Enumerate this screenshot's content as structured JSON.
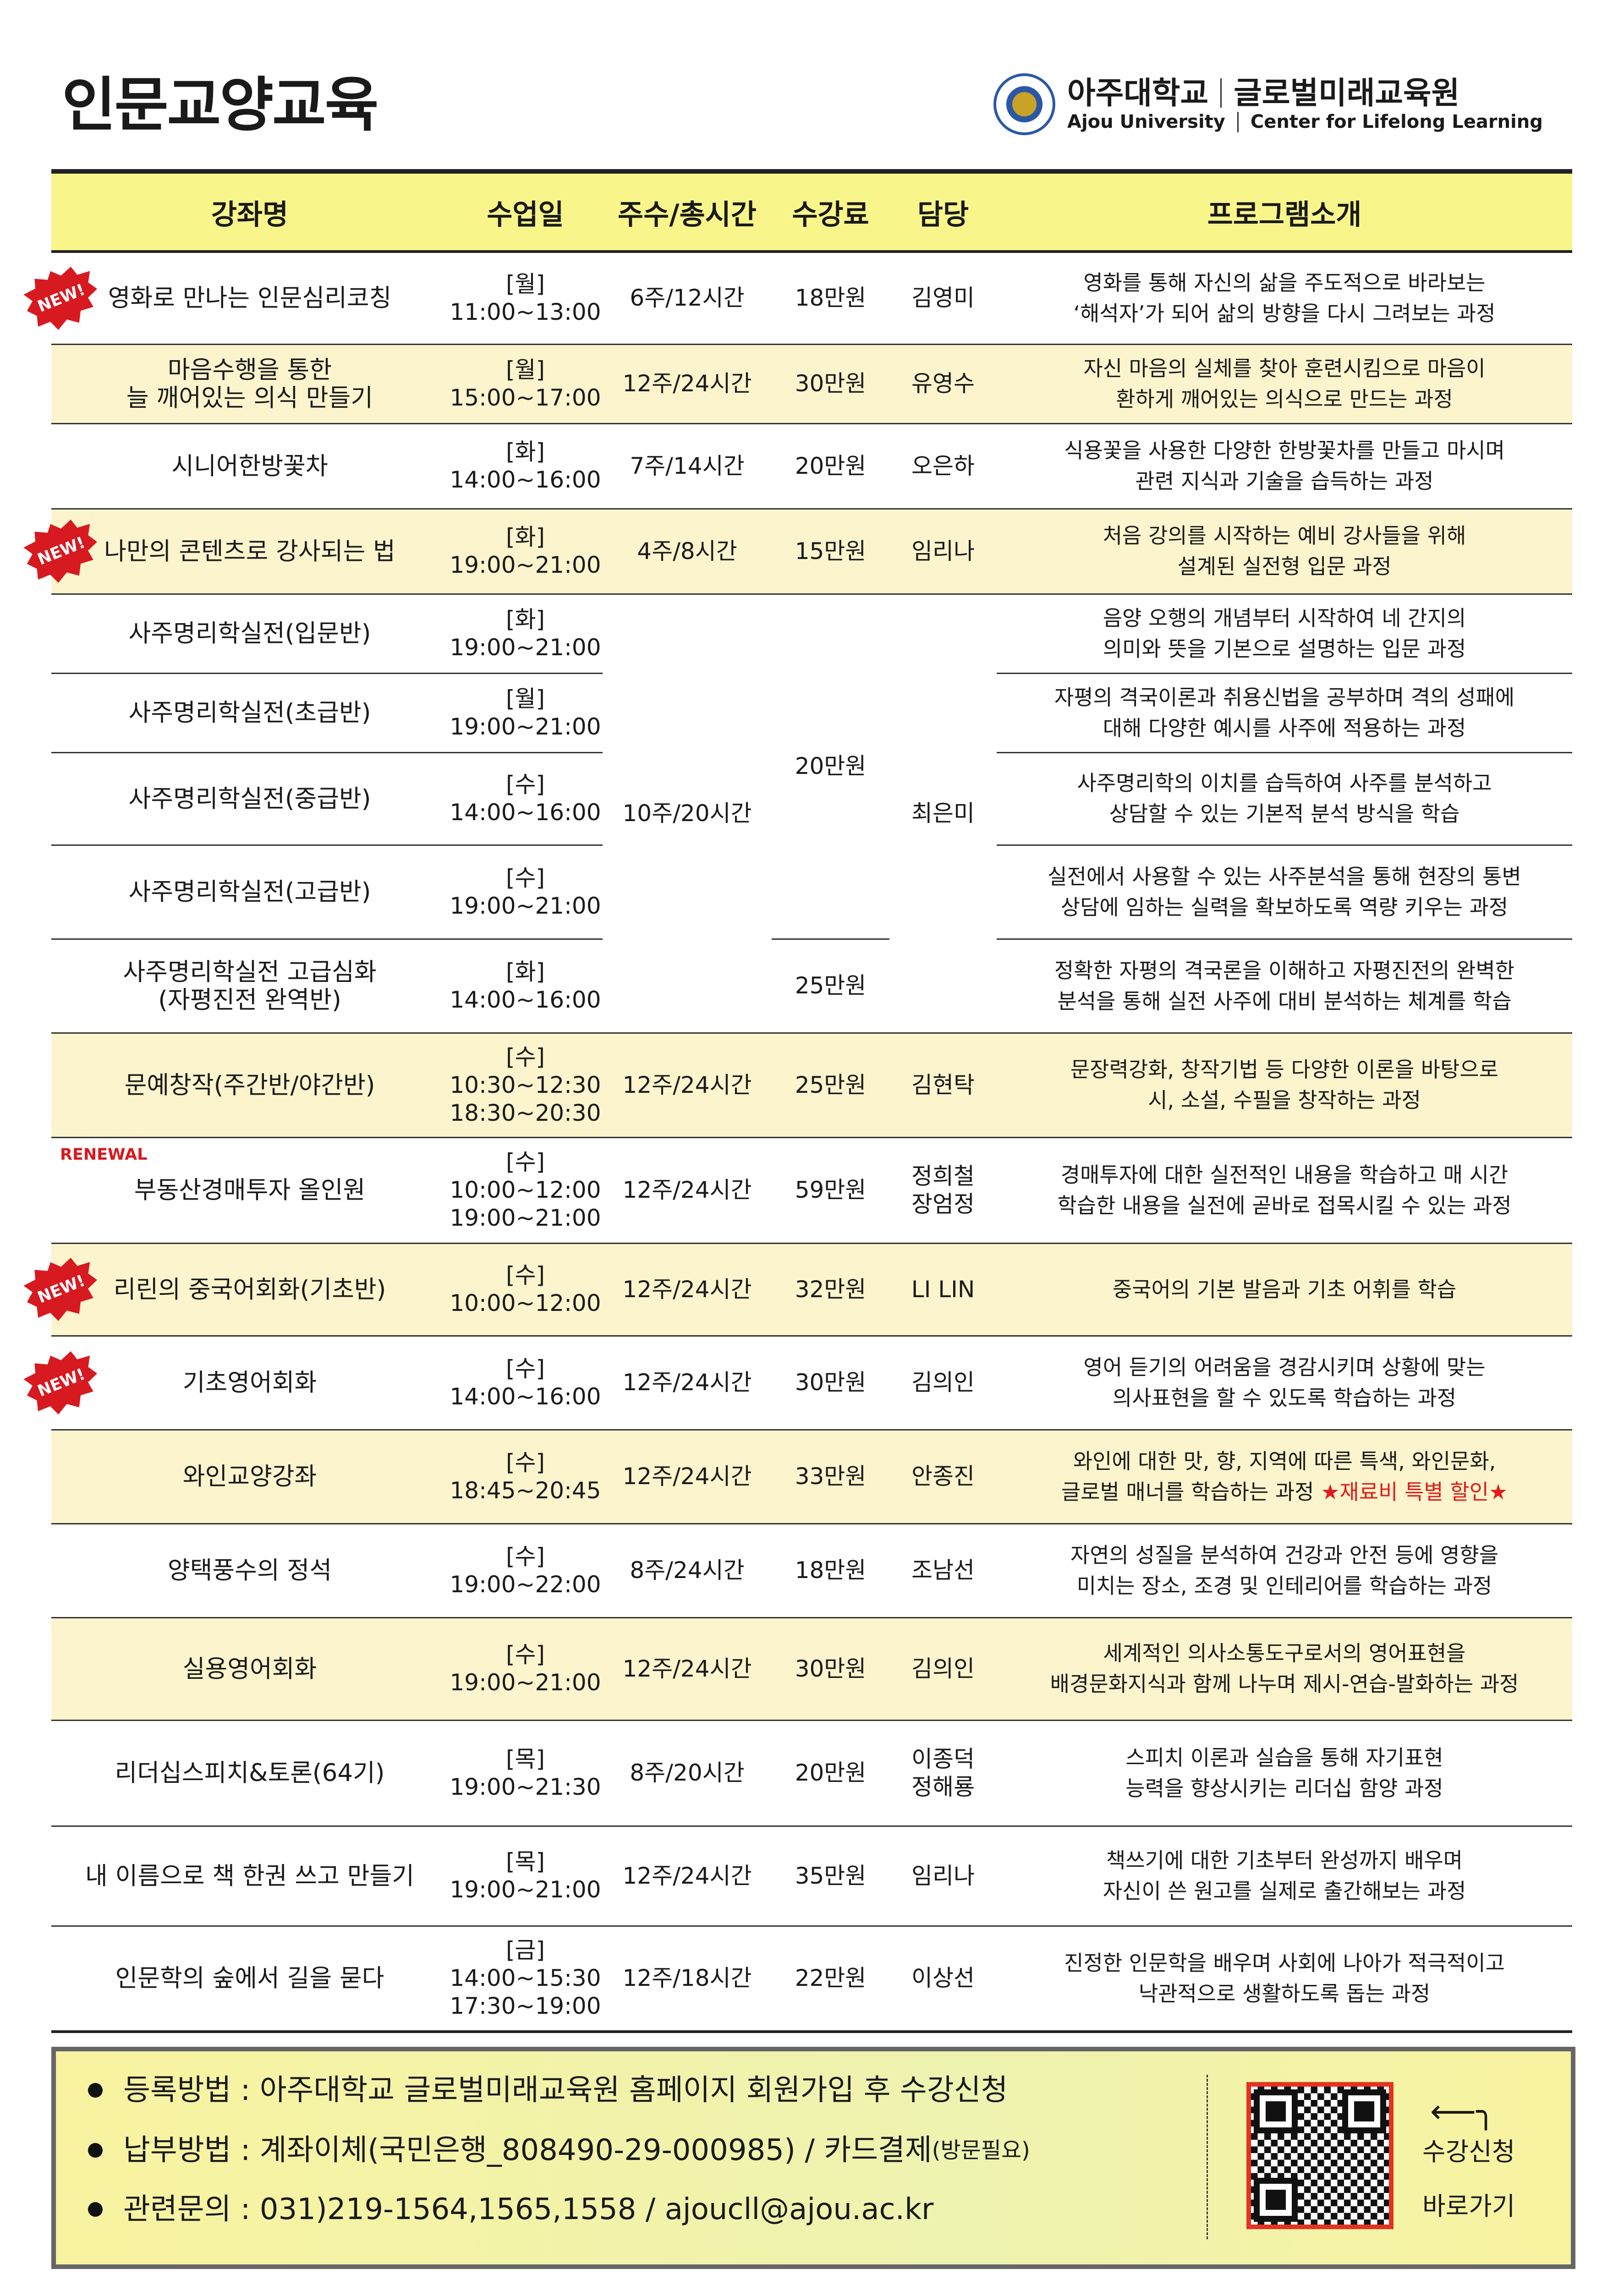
{
  "title": "인문교양교육",
  "logo": {
    "university_ko": "아주대학교",
    "center_ko": "글로벌미래교육원",
    "university_en": "Ajou University",
    "center_en": "Center for Lifelong Learning"
  },
  "table": {
    "headers": [
      "강좌명",
      "수업일",
      "주수/총시간",
      "수강료",
      "담당",
      "프로그램소개"
    ],
    "rows": [
      {
        "name": "영화로 만나는 인문심리코칭",
        "day": "[월]\n11:00~13:00",
        "weeks": "6주/12시간",
        "fee": "18만원",
        "instructor": "김영미",
        "desc": "영화를 통해 자신의 삶을 주도적으로 바라보는\n‘해석자’가 되어 삶의 방향을 다시 그려보는 과정",
        "badge": "NEW!",
        "bg": "white"
      },
      {
        "name": "마음수행을 통한\n늘 깨어있는 의식 만들기",
        "day": "[월]\n15:00~17:00",
        "weeks": "12주/24시간",
        "fee": "30만원",
        "instructor": "유영수",
        "desc": "자신 마음의 실체를 찾아 훈련시킴으로 마음이\n환하게 깨어있는 의식으로 만드는 과정",
        "bg": "cream"
      },
      {
        "name": "시니어한방꽃차",
        "day": "[화]\n14:00~16:00",
        "weeks": "7주/14시간",
        "fee": "20만원",
        "instructor": "오은하",
        "desc": "식용꽃을 사용한 다양한 한방꽃차를 만들고 마시며\n관련 지식과 기술을 습득하는 과정",
        "bg": "white"
      },
      {
        "name": "나만의 콘텐츠로 강사되는 법",
        "day": "[화]\n19:00~21:00",
        "weeks": "4주/8시간",
        "fee": "15만원",
        "instructor": "임리나",
        "desc": "처음 강의를 시작하는 예비 강사들을 위해\n설계된 실전형 입문 과정",
        "badge": "NEW!",
        "bg": "cream"
      },
      {
        "name": "사주명리학실전(입문반)",
        "day": "[화]\n19:00~21:00",
        "weeks": "10주/20시간",
        "fee": "20만원",
        "instructor": "최은미",
        "desc": "음양 오행의 개념부터 시작하여 네 간지의\n의미와 뜻을 기본으로 설명하는 입문 과정",
        "bg": "white"
      },
      {
        "name": "사주명리학실전(초급반)",
        "day": "[월]\n19:00~21:00",
        "desc": "자평의 격국이론과 취용신법을 공부하며 격의 성패에\n대해 다양한 예시를 사주에 적용하는 과정",
        "bg": "white"
      },
      {
        "name": "사주명리학실전(중급반)",
        "day": "[수]\n14:00~16:00",
        "desc": "사주명리학의 이치를 습득하여 사주를 분석하고\n상담할 수 있는 기본적 분석 방식을 학습",
        "bg": "white"
      },
      {
        "name": "사주명리학실전(고급반)",
        "day": "[수]\n19:00~21:00",
        "desc": "실전에서 사용할 수 있는 사주분석을 통해 현장의 통변\n상담에 임하는 실력을 확보하도록 역량 키우는 과정",
        "bg": "white"
      },
      {
        "name": "사주명리학실전 고급심화\n(자평진전 완역반)",
        "day": "[화]\n14:00~16:00",
        "fee": "25만원",
        "desc": "정확한 자평의 격국론을 이해하고 자평진전의 완벽한\n분석을 통해 실전 사주에 대비 분석하는 체계를 학습",
        "bg": "white"
      },
      {
        "name": "문예창작(주간반/야간반)",
        "day": "[수]\n10:30~12:30\n18:30~20:30",
        "weeks": "12주/24시간",
        "fee": "25만원",
        "instructor": "김현탁",
        "desc": "문장력강화, 창작기법 등 다양한 이론을 바탕으로\n시, 소설, 수필을 창작하는 과정",
        "bg": "cream"
      },
      {
        "name": "부동산경매투자 올인원",
        "day": "[수]\n10:00~12:00\n19:00~21:00",
        "weeks": "12주/24시간",
        "fee": "59만원",
        "instructor": "정희철\n장엄정",
        "desc": "경매투자에 대한 실전적인 내용을 학습하고 매 시간\n학습한 내용을 실전에 곧바로 접목시킬 수 있는 과정",
        "renewal": "RENEWAL",
        "bg": "white"
      },
      {
        "name": "리린의 중국어회화(기초반)",
        "day": "[수]\n10:00~12:00",
        "weeks": "12주/24시간",
        "fee": "32만원",
        "instructor": "LI LIN",
        "desc": "중국어의 기본 발음과 기초 어휘를 학습",
        "badge": "NEW!",
        "bg": "cream"
      },
      {
        "name": "기초영어회화",
        "day": "[수]\n14:00~16:00",
        "weeks": "12주/24시간",
        "fee": "30만원",
        "instructor": "김의인",
        "desc": "영어 듣기의 어려움을 경감시키며 상황에 맞는\n의사표현을 할 수 있도록 학습하는 과정",
        "badge": "NEW!",
        "bg": "white"
      },
      {
        "name": "와인교양강좌",
        "day": "[수]\n18:45~20:45",
        "weeks": "12주/24시간",
        "fee": "33만원",
        "instructor": "안종진",
        "desc": "와인에 대한 맛, 향, 지역에 따른 특색, 와인문화,\n글로벌 매너를 학습하는 과정 ",
        "desc_highlight": "★재료비 특별 할인★",
        "bg": "cream"
      },
      {
        "name": "양택풍수의 정석",
        "day": "[수]\n19:00~22:00",
        "weeks": "8주/24시간",
        "fee": "18만원",
        "instructor": "조남선",
        "desc": "자연의 성질을 분석하여 건강과 안전 등에 영향을\n미치는 장소, 조경 및 인테리어를 학습하는 과정",
        "bg": "white"
      },
      {
        "name": "실용영어회화",
        "day": "[수]\n19:00~21:00",
        "weeks": "12주/24시간",
        "fee": "30만원",
        "instructor": "김의인",
        "desc": "세계적인 의사소통도구로서의  영어표현을\n배경문화지식과 함께 나누며 제시-연습-발화하는 과정",
        "bg": "cream"
      },
      {
        "name": "리더십스피치&토론(64기)",
        "day": "[목]\n19:00~21:30",
        "weeks": "8주/20시간",
        "fee": "20만원",
        "instructor": "이종덕\n정해룡",
        "desc": "스피치 이론과 실습을 통해 자기표현\n능력을 향상시키는 리더십 함양 과정",
        "bg": "white"
      },
      {
        "name": "내 이름으로 책 한권 쓰고 만들기",
        "day": "[목]\n19:00~21:00",
        "weeks": "12주/24시간",
        "fee": "35만원",
        "instructor": "임리나",
        "desc": "책쓰기에 대한 기초부터 완성까지 배우며\n자신이 쓴 원고를 실제로 출간해보는 과정",
        "bg": "white"
      },
      {
        "name": "인문학의 숲에서 길을 묻다",
        "day": "[금]\n14:00~15:30\n17:30~19:00",
        "weeks": "12주/18시간",
        "fee": "22만원",
        "instructor": "이상선",
        "desc": "진정한 인문학을 배우며 사회에 나아가 적극적이고\n낙관적으로 생활하도록 돕는 과정",
        "bg": "white"
      }
    ]
  },
  "footer": {
    "registration": "등록방법 : 아주대학교 글로벌미래교육원 홈페이지 회원가입 후 수강신청",
    "payment": "납부방법 : 계좌이체(국민은행_808490-29-000985) / 카드결제",
    "payment_note": "(방문필요)",
    "contact": "관련문의 : 031)219-1564,1565,1558 / ajoucll@ajou.ac.kr",
    "qr_label_1": "수강신청",
    "qr_label_2": "바로가기"
  },
  "colors": {
    "header_bg": "#f8f68a",
    "row_cream": "#fcf4cc",
    "badge_red": "#d71920",
    "highlight": "#e11b1b"
  }
}
